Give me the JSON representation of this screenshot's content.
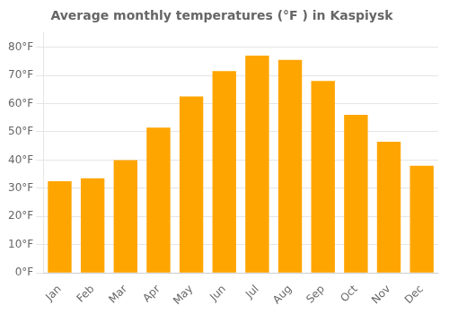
{
  "chart_data": {
    "type": "bar",
    "title": "Average monthly temperatures (°F ) in Kaspiysk",
    "categories": [
      "Jan",
      "Feb",
      "Mar",
      "Apr",
      "May",
      "Jun",
      "Jul",
      "Aug",
      "Sep",
      "Oct",
      "Nov",
      "Dec"
    ],
    "values": [
      32.5,
      33.5,
      40.0,
      51.5,
      62.5,
      71.5,
      77.0,
      75.5,
      68.0,
      56.0,
      46.5,
      38.0
    ],
    "color": "#FFA500",
    "ylim": [
      0,
      85
    ],
    "yticks": [
      {
        "value": 0,
        "label": "0°F"
      },
      {
        "value": 10,
        "label": "10°F"
      },
      {
        "value": 20,
        "label": "20°F"
      },
      {
        "value": 30,
        "label": "30°F"
      },
      {
        "value": 40,
        "label": "40°F"
      },
      {
        "value": 50,
        "label": "50°F"
      },
      {
        "value": 60,
        "label": "60°F"
      },
      {
        "value": 70,
        "label": "70°F"
      },
      {
        "value": 80,
        "label": "80°F"
      }
    ],
    "grid": true
  }
}
